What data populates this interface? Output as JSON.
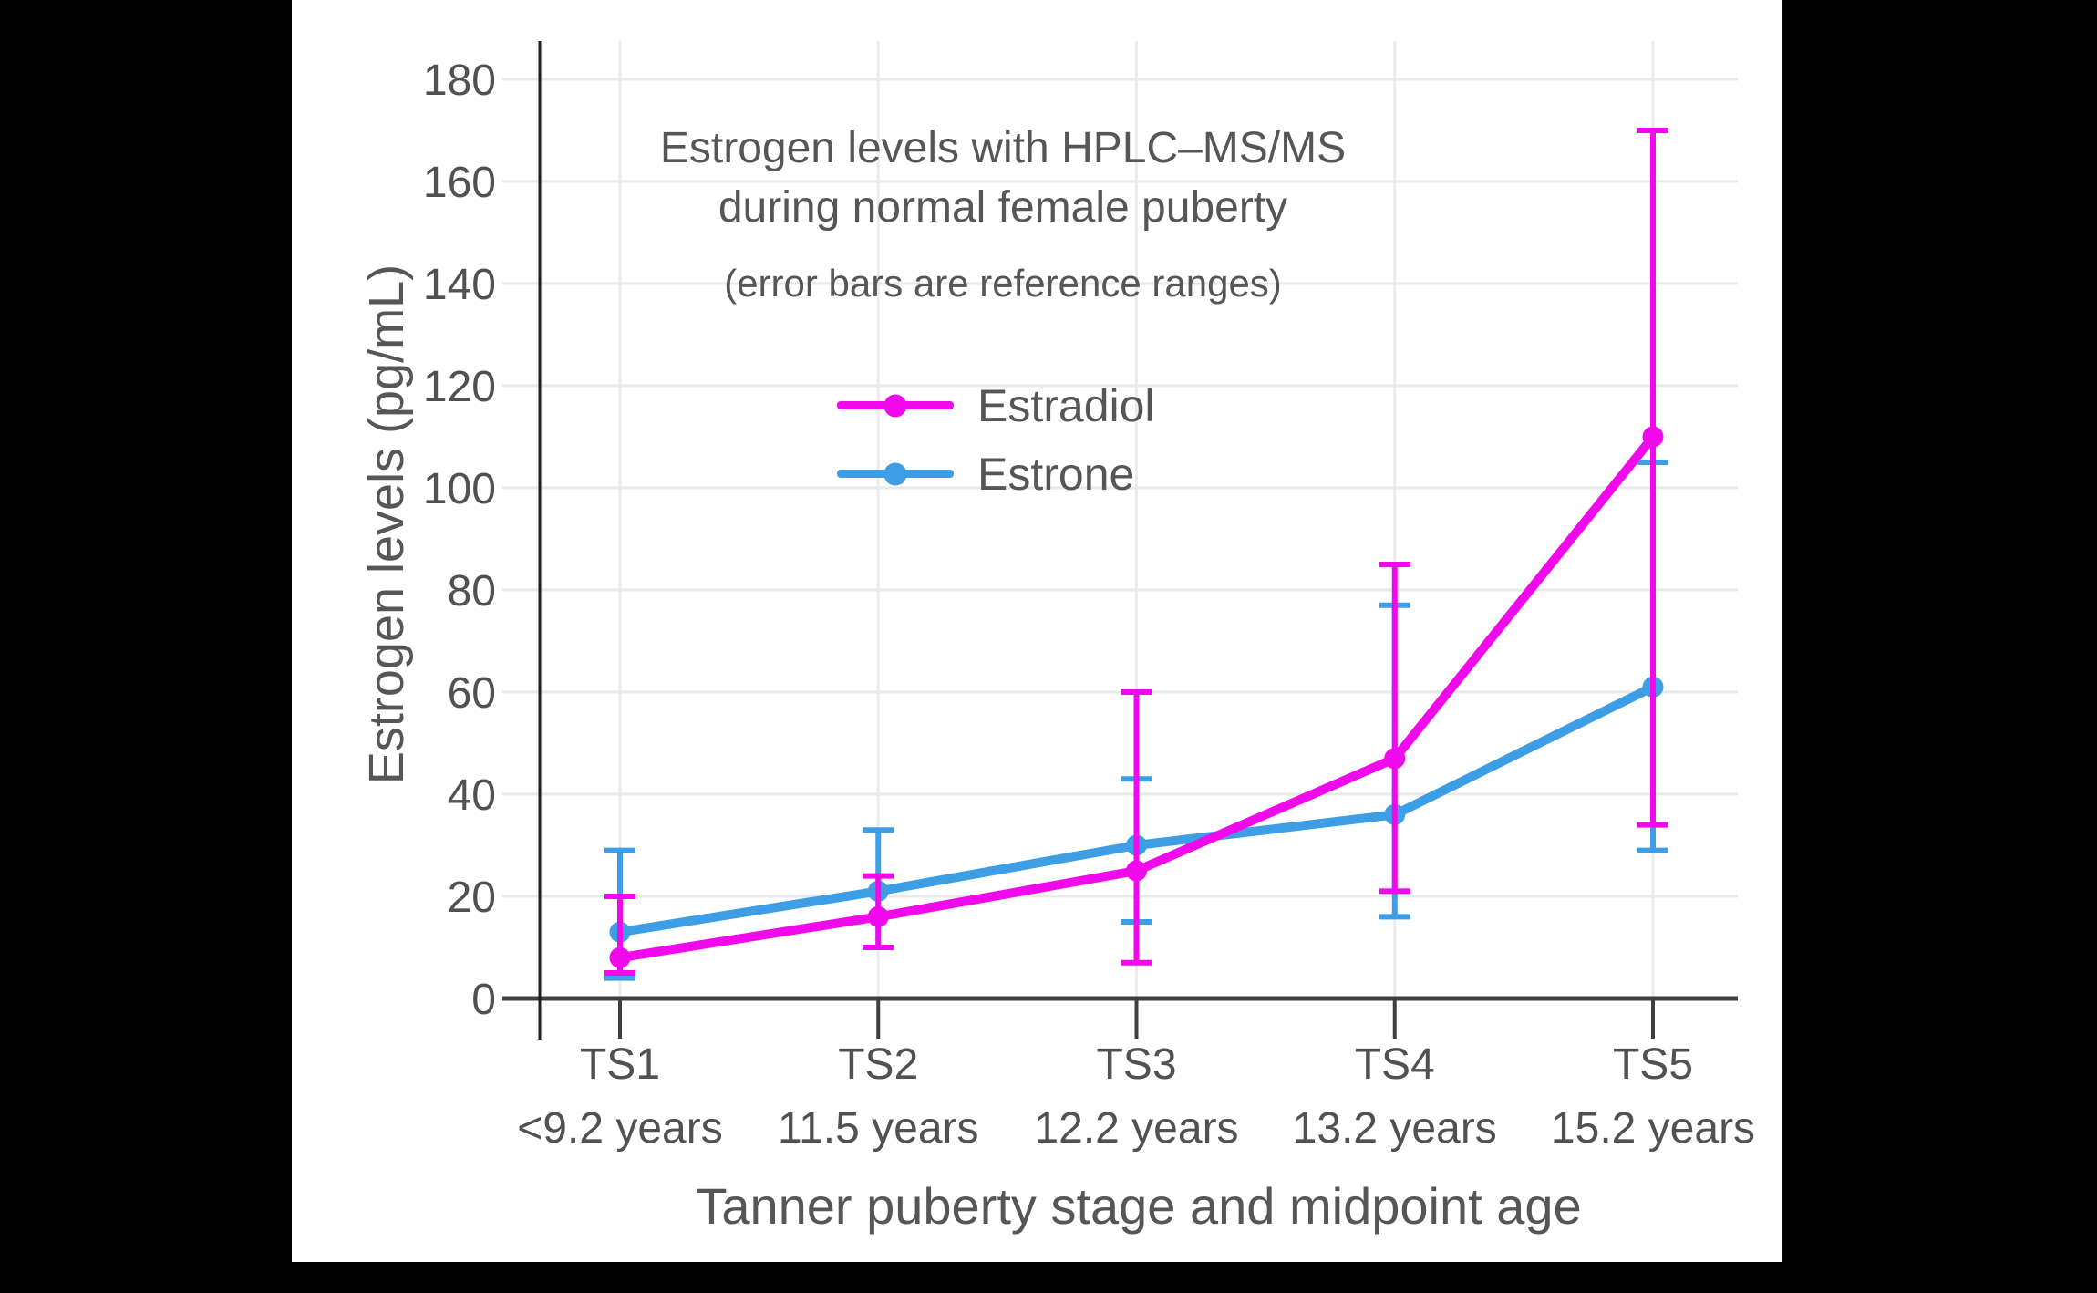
{
  "chart_data": {
    "type": "line",
    "title_line1": "Estrogen levels with HPLC–MS/MS",
    "title_line2": "during normal female puberty",
    "subtitle": "(error bars are reference ranges)",
    "xlabel": "Tanner puberty stage and midpoint age",
    "ylabel": "Estrogen levels (pg/mL)",
    "categories": [
      "TS1",
      "TS2",
      "TS3",
      "TS4",
      "TS5"
    ],
    "category_ages": [
      "<9.2 years",
      "11.5 years",
      "12.2 years",
      "13.2 years",
      "15.2 years"
    ],
    "yticks": [
      0,
      20,
      40,
      60,
      80,
      100,
      120,
      140,
      160,
      180
    ],
    "ylim": [
      0,
      186
    ],
    "grid": true,
    "legend_position": "upper center inside plot",
    "error_bar_meaning": "reference ranges",
    "series": [
      {
        "name": "Estradiol",
        "color": "#F00AEB",
        "values": [
          8,
          16,
          25,
          47,
          110
        ],
        "range_low": [
          5,
          10,
          7,
          21,
          34
        ],
        "range_high": [
          20,
          24,
          60,
          85,
          170
        ]
      },
      {
        "name": "Estrone",
        "color": "#3E9EE5",
        "values": [
          13,
          21,
          30,
          36,
          61
        ],
        "range_low": [
          4,
          10,
          15,
          16,
          29
        ],
        "range_high": [
          29,
          33,
          43,
          77,
          105
        ]
      }
    ]
  },
  "colors": {
    "background_matte": "#000000",
    "canvas": "#ffffff",
    "text": "#565656",
    "grid": "#e9e9e9",
    "axis": "#3f3f3f",
    "spine": "#1f1f1f"
  }
}
